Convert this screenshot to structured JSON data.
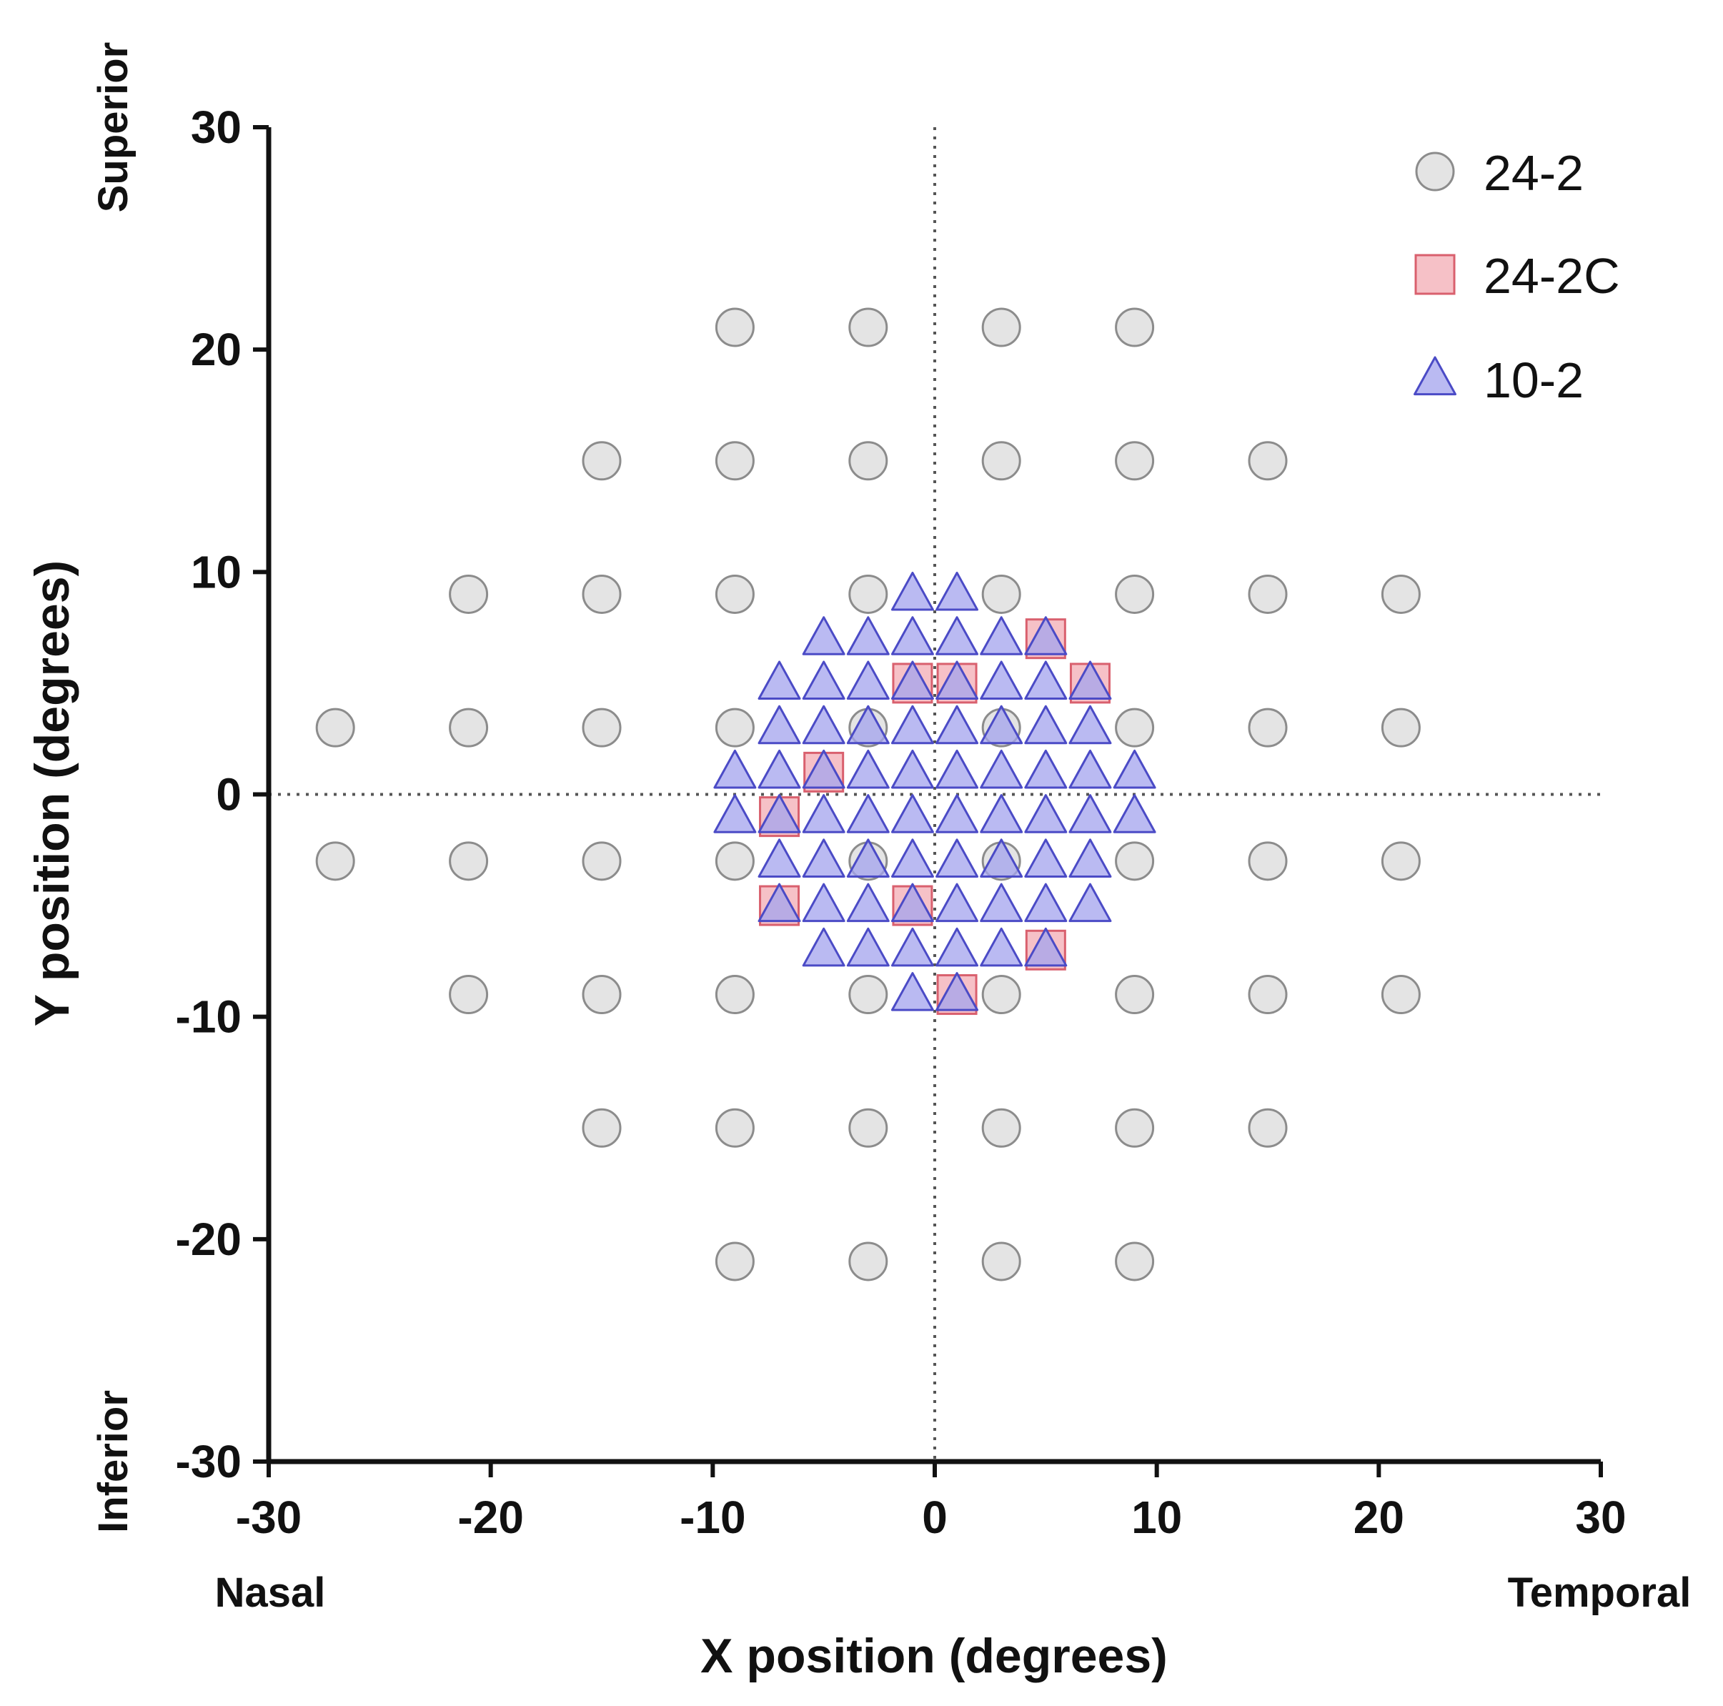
{
  "chart_data": {
    "type": "scatter",
    "title": "",
    "xlabel": "X position (degrees)",
    "ylabel": "Y position (degrees)",
    "xlim": [
      -30,
      30
    ],
    "ylim": [
      -30,
      30
    ],
    "xticks": [
      "-30",
      "-20",
      "-10",
      "0",
      "10",
      "20",
      "30"
    ],
    "yticks": [
      "-30",
      "-20",
      "-10",
      "0",
      "10",
      "20",
      "30"
    ],
    "x_direction_labels": {
      "left": "Nasal",
      "right": "Temporal"
    },
    "y_direction_labels": {
      "bottom": "Inferior",
      "top": "Superior"
    },
    "reference_lines": {
      "x": 0,
      "y": 0,
      "style": "dotted"
    },
    "grid": false,
    "legend_position": "top-right",
    "series": [
      {
        "name": "24-2",
        "marker": "circle",
        "fill": "#e4e4e4",
        "stroke": "#8c8c8c",
        "points": [
          [
            -9,
            21
          ],
          [
            -3,
            21
          ],
          [
            3,
            21
          ],
          [
            9,
            21
          ],
          [
            -15,
            15
          ],
          [
            -9,
            15
          ],
          [
            -3,
            15
          ],
          [
            3,
            15
          ],
          [
            9,
            15
          ],
          [
            15,
            15
          ],
          [
            -21,
            9
          ],
          [
            -15,
            9
          ],
          [
            -9,
            9
          ],
          [
            -3,
            9
          ],
          [
            3,
            9
          ],
          [
            9,
            9
          ],
          [
            15,
            9
          ],
          [
            21,
            9
          ],
          [
            -27,
            3
          ],
          [
            -21,
            3
          ],
          [
            -15,
            3
          ],
          [
            -9,
            3
          ],
          [
            -3,
            3
          ],
          [
            3,
            3
          ],
          [
            9,
            3
          ],
          [
            15,
            3
          ],
          [
            21,
            3
          ],
          [
            -27,
            -3
          ],
          [
            -21,
            -3
          ],
          [
            -15,
            -3
          ],
          [
            -9,
            -3
          ],
          [
            -3,
            -3
          ],
          [
            3,
            -3
          ],
          [
            9,
            -3
          ],
          [
            15,
            -3
          ],
          [
            21,
            -3
          ],
          [
            -21,
            -9
          ],
          [
            -15,
            -9
          ],
          [
            -9,
            -9
          ],
          [
            -3,
            -9
          ],
          [
            3,
            -9
          ],
          [
            9,
            -9
          ],
          [
            15,
            -9
          ],
          [
            21,
            -9
          ],
          [
            -15,
            -15
          ],
          [
            -9,
            -15
          ],
          [
            -3,
            -15
          ],
          [
            3,
            -15
          ],
          [
            9,
            -15
          ],
          [
            15,
            -15
          ],
          [
            -9,
            -21
          ],
          [
            -3,
            -21
          ],
          [
            3,
            -21
          ],
          [
            9,
            -21
          ]
        ]
      },
      {
        "name": "24-2C",
        "marker": "square",
        "fill": "#f4b6bd",
        "stroke": "#d9606e",
        "points": [
          [
            5,
            7
          ],
          [
            -1,
            5
          ],
          [
            1,
            5
          ],
          [
            7,
            5
          ],
          [
            -5,
            1
          ],
          [
            -7,
            -1
          ],
          [
            -7,
            -5
          ],
          [
            -1,
            -5
          ],
          [
            5,
            -7
          ],
          [
            1,
            -9
          ]
        ]
      },
      {
        "name": "10-2",
        "marker": "triangle",
        "fill": "#a3a3ee",
        "stroke": "#4b4bc6",
        "points": [
          [
            -1,
            9
          ],
          [
            1,
            9
          ],
          [
            -5,
            7
          ],
          [
            -3,
            7
          ],
          [
            -1,
            7
          ],
          [
            1,
            7
          ],
          [
            3,
            7
          ],
          [
            5,
            7
          ],
          [
            -7,
            5
          ],
          [
            -5,
            5
          ],
          [
            -3,
            5
          ],
          [
            -1,
            5
          ],
          [
            1,
            5
          ],
          [
            3,
            5
          ],
          [
            5,
            5
          ],
          [
            7,
            5
          ],
          [
            -7,
            3
          ],
          [
            -5,
            3
          ],
          [
            -3,
            3
          ],
          [
            -1,
            3
          ],
          [
            1,
            3
          ],
          [
            3,
            3
          ],
          [
            5,
            3
          ],
          [
            7,
            3
          ],
          [
            -9,
            1
          ],
          [
            -7,
            1
          ],
          [
            -5,
            1
          ],
          [
            -3,
            1
          ],
          [
            -1,
            1
          ],
          [
            1,
            1
          ],
          [
            3,
            1
          ],
          [
            5,
            1
          ],
          [
            7,
            1
          ],
          [
            9,
            1
          ],
          [
            -9,
            -1
          ],
          [
            -7,
            -1
          ],
          [
            -5,
            -1
          ],
          [
            -3,
            -1
          ],
          [
            -1,
            -1
          ],
          [
            1,
            -1
          ],
          [
            3,
            -1
          ],
          [
            5,
            -1
          ],
          [
            7,
            -1
          ],
          [
            9,
            -1
          ],
          [
            -7,
            -3
          ],
          [
            -5,
            -3
          ],
          [
            -3,
            -3
          ],
          [
            -1,
            -3
          ],
          [
            1,
            -3
          ],
          [
            3,
            -3
          ],
          [
            5,
            -3
          ],
          [
            7,
            -3
          ],
          [
            -7,
            -5
          ],
          [
            -5,
            -5
          ],
          [
            -3,
            -5
          ],
          [
            -1,
            -5
          ],
          [
            1,
            -5
          ],
          [
            3,
            -5
          ],
          [
            5,
            -5
          ],
          [
            7,
            -5
          ],
          [
            -5,
            -7
          ],
          [
            -3,
            -7
          ],
          [
            -1,
            -7
          ],
          [
            1,
            -7
          ],
          [
            3,
            -7
          ],
          [
            5,
            -7
          ],
          [
            -1,
            -9
          ],
          [
            1,
            -9
          ]
        ]
      }
    ]
  }
}
